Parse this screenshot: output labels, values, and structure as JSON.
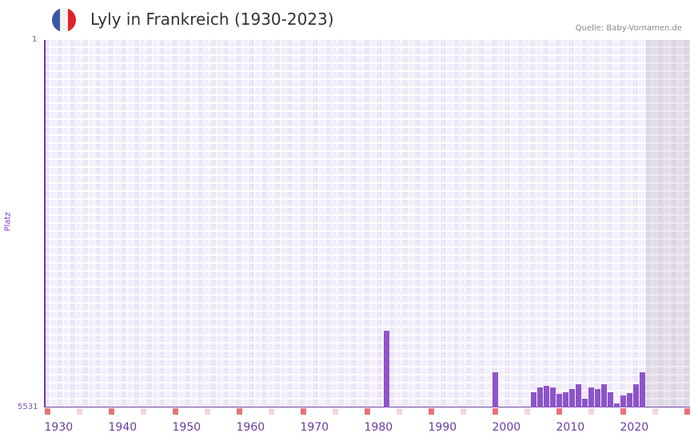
{
  "header": {
    "title": "Lyly in Frankreich (1930-2023)",
    "source": "Quelle: Baby-Vornamen.de",
    "flag_colors": [
      "#3a56a6",
      "#f2f2f2",
      "#e3212b"
    ]
  },
  "chart_data": {
    "type": "bar",
    "title": "Lyly in Frankreich (1930-2023)",
    "xlabel": "",
    "ylabel": "Platz",
    "ylim": [
      5531,
      1
    ],
    "y_ticks": [
      "1",
      "5531"
    ],
    "x_ticks": [
      "1930",
      "1940",
      "1950",
      "1960",
      "1970",
      "1980",
      "1990",
      "2000",
      "2010",
      "2020"
    ],
    "x_range": [
      1930,
      2030
    ],
    "future_from": 2024,
    "years": [
      1983,
      2000,
      2006,
      2007,
      2008,
      2009,
      2010,
      2011,
      2012,
      2013,
      2014,
      2015,
      2016,
      2017,
      2018,
      2019,
      2020,
      2021,
      2022,
      2023
    ],
    "values": [
      4377,
      5002,
      5302,
      5230,
      5206,
      5230,
      5326,
      5302,
      5254,
      5182,
      5398,
      5230,
      5254,
      5182,
      5302,
      5470,
      5350,
      5314,
      5182,
      5002
    ],
    "bar_color": "#8e54c9",
    "decade_marker_color": "#e5737b",
    "minor_marker_color": "#f3d6de"
  }
}
